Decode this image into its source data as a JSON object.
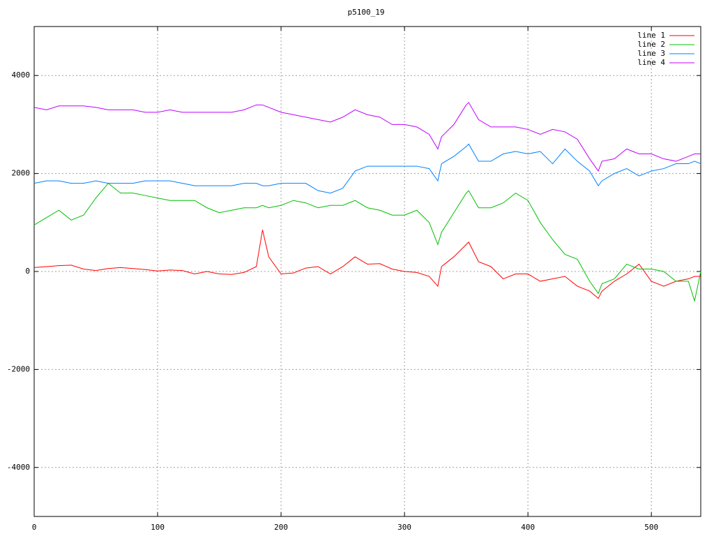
{
  "chart_data": {
    "type": "line",
    "title": "p5100_19",
    "x": [
      0,
      10,
      20,
      30,
      40,
      50,
      60,
      70,
      80,
      90,
      100,
      110,
      120,
      130,
      140,
      150,
      160,
      170,
      180,
      185,
      190,
      200,
      210,
      220,
      230,
      240,
      250,
      260,
      270,
      280,
      290,
      300,
      310,
      320,
      327,
      330,
      340,
      350,
      352,
      360,
      370,
      380,
      390,
      400,
      410,
      420,
      430,
      440,
      450,
      457,
      460,
      470,
      480,
      490,
      500,
      510,
      520,
      530,
      535,
      540
    ],
    "series": [
      {
        "name": "line 1",
        "color": "#ff0000",
        "values": [
          80,
          100,
          120,
          130,
          50,
          20,
          60,
          80,
          60,
          40,
          10,
          30,
          20,
          -50,
          0,
          -50,
          -60,
          -20,
          100,
          850,
          300,
          -50,
          -30,
          70,
          100,
          -50,
          100,
          300,
          150,
          160,
          50,
          0,
          -20,
          -100,
          -300,
          100,
          300,
          550,
          600,
          200,
          100,
          -150,
          -50,
          -50,
          -200,
          -150,
          -100,
          -300,
          -400,
          -550,
          -400,
          -200,
          -50,
          150,
          -200,
          -300,
          -200,
          -150,
          -100,
          -100
        ]
      },
      {
        "name": "line 2",
        "color": "#00c000",
        "values": [
          950,
          1100,
          1250,
          1050,
          1150,
          1500,
          1800,
          1600,
          1600,
          1550,
          1500,
          1450,
          1450,
          1450,
          1300,
          1200,
          1250,
          1300,
          1300,
          1350,
          1300,
          1350,
          1450,
          1400,
          1300,
          1350,
          1350,
          1450,
          1300,
          1250,
          1150,
          1150,
          1250,
          1000,
          550,
          800,
          1200,
          1600,
          1650,
          1300,
          1300,
          1400,
          1600,
          1450,
          1000,
          650,
          350,
          250,
          -200,
          -450,
          -250,
          -150,
          150,
          50,
          50,
          0,
          -200,
          -200,
          -600,
          0
        ]
      },
      {
        "name": "line 3",
        "color": "#0080ff",
        "values": [
          1800,
          1850,
          1850,
          1800,
          1800,
          1850,
          1800,
          1800,
          1800,
          1850,
          1850,
          1850,
          1800,
          1750,
          1750,
          1750,
          1750,
          1800,
          1800,
          1750,
          1750,
          1800,
          1800,
          1800,
          1650,
          1600,
          1700,
          2050,
          2150,
          2150,
          2150,
          2150,
          2150,
          2100,
          1850,
          2200,
          2350,
          2550,
          2600,
          2250,
          2250,
          2400,
          2450,
          2400,
          2450,
          2200,
          2500,
          2250,
          2050,
          1750,
          1850,
          2000,
          2100,
          1950,
          2050,
          2100,
          2200,
          2200,
          2250,
          2200
        ]
      },
      {
        "name": "line 4",
        "color": "#c000ff",
        "values": [
          3350,
          3300,
          3380,
          3380,
          3380,
          3350,
          3300,
          3300,
          3300,
          3250,
          3250,
          3300,
          3250,
          3250,
          3250,
          3250,
          3250,
          3300,
          3400,
          3400,
          3350,
          3250,
          3200,
          3150,
          3100,
          3050,
          3150,
          3300,
          3200,
          3150,
          3000,
          3000,
          2950,
          2800,
          2500,
          2750,
          3000,
          3400,
          3450,
          3100,
          2950,
          2950,
          2950,
          2900,
          2800,
          2900,
          2850,
          2700,
          2300,
          2050,
          2250,
          2300,
          2500,
          2400,
          2400,
          2300,
          2250,
          2350,
          2400,
          2400
        ]
      }
    ],
    "xlim": [
      0,
      540
    ],
    "xticks": [
      0,
      100,
      200,
      300,
      400,
      500
    ],
    "ylim": [
      -5000,
      5000
    ],
    "yticks": [
      -4000,
      -2000,
      0,
      2000,
      4000
    ],
    "grid": true,
    "legend": "top-right"
  }
}
